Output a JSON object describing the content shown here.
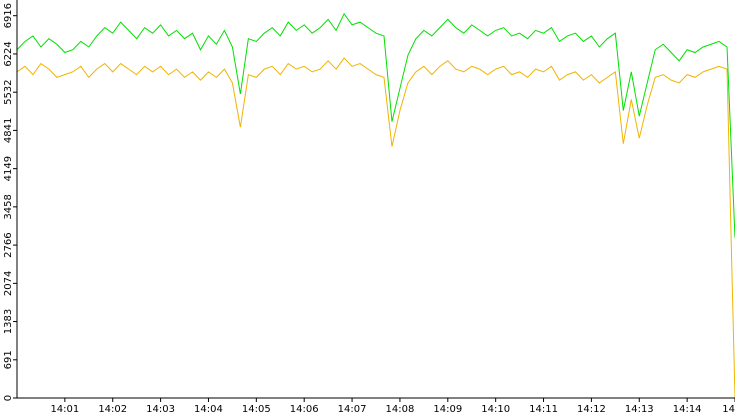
{
  "chart_data": {
    "type": "line",
    "categories": [
      null,
      null,
      null,
      null,
      null,
      null,
      "14:01",
      null,
      null,
      null,
      null,
      null,
      "14:02",
      null,
      null,
      null,
      null,
      null,
      "14:03",
      null,
      null,
      null,
      null,
      null,
      "14:04",
      null,
      null,
      null,
      null,
      null,
      "14:05",
      null,
      null,
      null,
      null,
      null,
      "14:06",
      null,
      null,
      null,
      null,
      null,
      "14:07",
      null,
      null,
      null,
      null,
      null,
      "14:08",
      null,
      null,
      null,
      null,
      null,
      "14:09",
      null,
      null,
      null,
      null,
      null,
      "14:10",
      null,
      null,
      null,
      null,
      null,
      "14:11",
      null,
      null,
      null,
      null,
      null,
      "14:12",
      null,
      null,
      null,
      null,
      null,
      "14:13",
      null,
      null,
      null,
      null,
      null,
      "14:14",
      null,
      null,
      null,
      null,
      null,
      "14"
    ],
    "series": [
      {
        "color": "#00e000",
        "values": [
          6300,
          6450,
          6550,
          6350,
          6500,
          6400,
          6250,
          6300,
          6450,
          6350,
          6550,
          6700,
          6600,
          6800,
          6650,
          6500,
          6700,
          6600,
          6750,
          6550,
          6650,
          6500,
          6600,
          6300,
          6550,
          6400,
          6650,
          6350,
          5500,
          6500,
          6450,
          6600,
          6700,
          6550,
          6800,
          6650,
          6750,
          6600,
          6700,
          6850,
          6650,
          6950,
          6750,
          6800,
          6700,
          6600,
          6550,
          5000,
          5600,
          6200,
          6500,
          6650,
          6550,
          6700,
          6850,
          6700,
          6600,
          6750,
          6650,
          6550,
          6650,
          6700,
          6550,
          6600,
          6500,
          6650,
          6600,
          6700,
          6450,
          6550,
          6600,
          6450,
          6550,
          6350,
          6500,
          6600,
          5200,
          5900,
          5100,
          5700,
          6300,
          6400,
          6250,
          6100,
          6300,
          6250,
          6350,
          6400,
          6450,
          6350,
          2900
        ]
      },
      {
        "color": "#f0b400",
        "values": [
          5900,
          6000,
          5850,
          6050,
          5950,
          5800,
          5850,
          5900,
          6000,
          5800,
          5950,
          6050,
          5900,
          6050,
          5950,
          5850,
          6000,
          5900,
          6000,
          5850,
          5950,
          5800,
          5900,
          5750,
          5900,
          5800,
          5950,
          5700,
          4900,
          5850,
          5800,
          5950,
          6000,
          5850,
          6050,
          5950,
          6000,
          5900,
          5950,
          6100,
          5950,
          6150,
          6000,
          6050,
          5950,
          5850,
          5800,
          4550,
          5200,
          5700,
          5900,
          6000,
          5850,
          6000,
          6100,
          5950,
          5900,
          6000,
          5950,
          5850,
          5950,
          6000,
          5850,
          5900,
          5800,
          5950,
          5900,
          6000,
          5750,
          5850,
          5900,
          5750,
          5850,
          5700,
          5800,
          5900,
          4600,
          5400,
          4700,
          5300,
          5800,
          5850,
          5750,
          5700,
          5850,
          5800,
          5900,
          5950,
          6000,
          5950,
          0
        ]
      }
    ],
    "ylim": [
      0,
      7200
    ],
    "yticks": [
      0,
      691,
      1383,
      2074,
      2766,
      3458,
      4149,
      4841,
      5532,
      6224,
      6916
    ]
  }
}
